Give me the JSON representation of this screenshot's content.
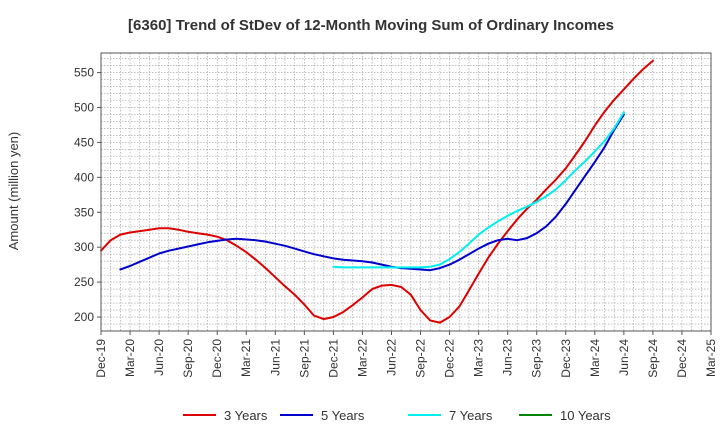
{
  "chart_data": {
    "type": "line",
    "title": "[6360]  Trend of StDev of 12-Month Moving Sum of Ordinary Incomes",
    "xlabel": "",
    "ylabel": "Amount (million yen)",
    "ylim": [
      180,
      578
    ],
    "yticks": [
      200,
      250,
      300,
      350,
      400,
      450,
      500,
      550
    ],
    "x_tick_labels": [
      "Dec-19",
      "Mar-20",
      "Jun-20",
      "Sep-20",
      "Dec-20",
      "Mar-21",
      "Jun-21",
      "Sep-21",
      "Dec-21",
      "Mar-22",
      "Jun-22",
      "Sep-22",
      "Dec-22",
      "Mar-23",
      "Jun-23",
      "Sep-23",
      "Dec-23",
      "Mar-24",
      "Jun-24",
      "Sep-24",
      "Dec-24",
      "Mar-25"
    ],
    "grid": true,
    "series": [
      {
        "name": "3 Years",
        "color": "#dd0000",
        "start_index": 0,
        "values": [
          295,
          310,
          318,
          321,
          323,
          325,
          327,
          327,
          325,
          322,
          320,
          318,
          315,
          310,
          302,
          293,
          282,
          270,
          257,
          244,
          232,
          218,
          202,
          197,
          200,
          207,
          217,
          228,
          240,
          245,
          246,
          243,
          232,
          210,
          195,
          192,
          200,
          215,
          238,
          262,
          285,
          305,
          323,
          340,
          355,
          368,
          383,
          397,
          413,
          432,
          452,
          474,
          494,
          511,
          526,
          541,
          555,
          567
        ]
      },
      {
        "name": "5 Years",
        "color": "#0000cc",
        "start_index": 2,
        "values": [
          268,
          273,
          279,
          285,
          291,
          295,
          298,
          301,
          304,
          307,
          309,
          311,
          312,
          311,
          310,
          308,
          305,
          302,
          298,
          294,
          290,
          287,
          284,
          282,
          281,
          280,
          278,
          275,
          272,
          270,
          269,
          268,
          267,
          270,
          275,
          282,
          290,
          298,
          305,
          310,
          312,
          310,
          313,
          320,
          330,
          344,
          362,
          382,
          402,
          422,
          443,
          468,
          490
        ]
      },
      {
        "name": "7 Years",
        "color": "#00eeee",
        "start_index": 24,
        "values": [
          272,
          271,
          271,
          271,
          271,
          271,
          271,
          271,
          271,
          271,
          272,
          275,
          283,
          293,
          305,
          318,
          328,
          337,
          345,
          352,
          358,
          365,
          373,
          383,
          396,
          410,
          423,
          437,
          452,
          470,
          493
        ]
      },
      {
        "name": "10 Years",
        "color": "#008800",
        "start_index": 0,
        "values": []
      }
    ]
  }
}
